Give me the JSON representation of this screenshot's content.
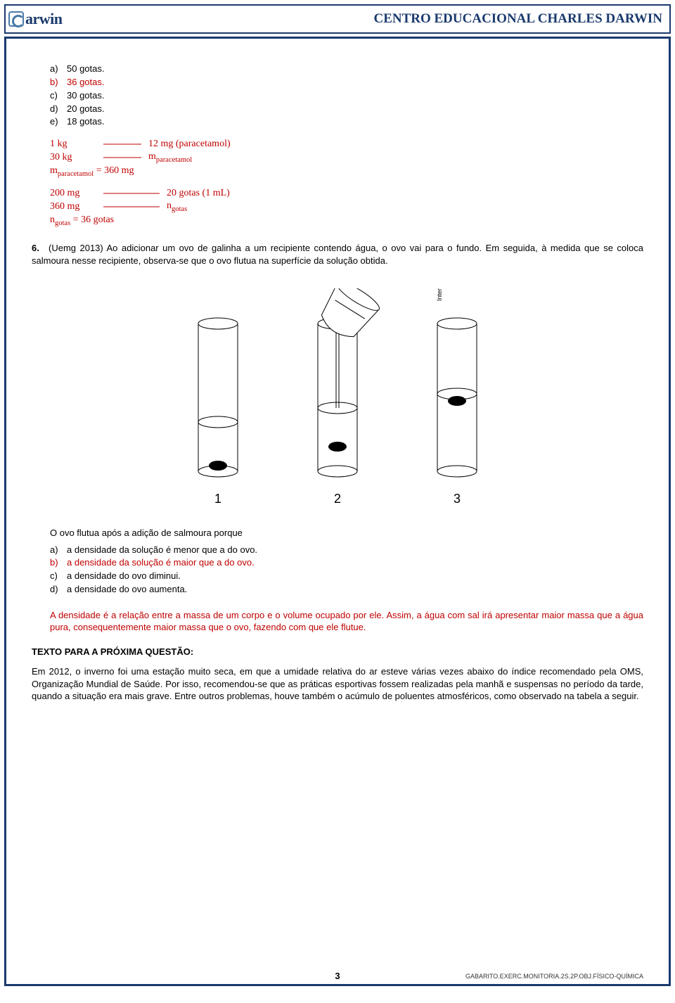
{
  "header": {
    "logo_text": "arwin",
    "title": "CENTRO EDUCACIONAL CHARLES DARWIN"
  },
  "top_options": [
    {
      "label": "a)",
      "text": "50 gotas.",
      "color": "black"
    },
    {
      "label": "b)",
      "text": "36 gotas.",
      "color": "red"
    },
    {
      "label": "c)",
      "text": "30 gotas.",
      "color": "black"
    },
    {
      "label": "d)",
      "text": "20 gotas.",
      "color": "black"
    },
    {
      "label": "e)",
      "text": "18 gotas.",
      "color": "black"
    }
  ],
  "calc": {
    "row1_l": "1 kg",
    "row1_r": "12 mg (paracetamol)",
    "row2_l": "30 kg",
    "row2_r": "m<sub>paracetamol</sub>",
    "eq1": "m<sub>paracetamol</sub> = 360 mg",
    "row3_l": "200 mg",
    "row3_r": "20 gotas (1 mL)",
    "row4_l": "360 mg",
    "row4_r": "n<sub>gotas</sub>",
    "eq2": "n<sub>gotas</sub> = 36 gotas"
  },
  "q6": {
    "num": "6.",
    "text": "(Uemg 2013) Ao adicionar um ovo de galinha a um recipiente contendo água, o ovo vai para o fundo. Em seguida, à medida que se coloca salmoura nesse recipiente, observa-se que o ovo flutua na superfície da solução obtida.",
    "diagram_labels": {
      "n1": "1",
      "n2": "2",
      "n3": "3",
      "credit": "Interbits®"
    },
    "intro": "O ovo flutua após a adição de salmoura porque",
    "options": [
      {
        "label": "a)",
        "text": "a densidade da solução é menor que a do ovo.",
        "color": "black"
      },
      {
        "label": "b)",
        "text": "a densidade da solução é maior que a do ovo.",
        "color": "red"
      },
      {
        "label": "c)",
        "text": "a densidade do ovo diminui.",
        "color": "black"
      },
      {
        "label": "d)",
        "text": "a densidade do ovo aumenta.",
        "color": "black"
      }
    ],
    "explain": "A densidade é a relação entre a massa de um corpo e o volume ocupado por ele. Assim, a água com sal irá apresentar maior massa que a água pura, consequentemente maior massa que o ovo, fazendo com que ele flutue."
  },
  "next_section": {
    "heading": "TEXTO PARA A PRÓXIMA QUESTÃO:",
    "text": "Em 2012, o inverno foi uma estação muito seca, em que a umidade relativa do ar esteve várias vezes abaixo do índice recomendado pela OMS, Organização Mundial de Saúde. Por isso, recomendou-se que as práticas esportivas fossem realizadas pela manhã e suspensas no período da tarde, quando a situação era mais grave. Entre outros problemas, houve também o acúmulo de poluentes atmosféricos, como observado na tabela a seguir."
  },
  "footer": {
    "code": "GABARITO.EXERC.MONITORIA.2S.2P.OBJ.FÍSICO-QUÍMICA",
    "page": "3"
  }
}
